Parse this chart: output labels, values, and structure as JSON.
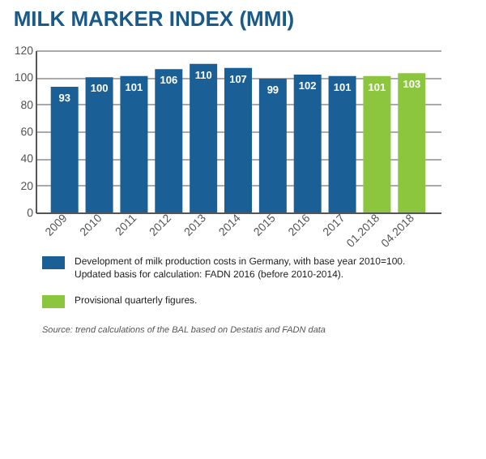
{
  "chart_data": {
    "type": "bar",
    "title": "MILK MARKER INDEX (MMI)",
    "categories": [
      "2009",
      "2010",
      "2011",
      "2012",
      "2013",
      "2014",
      "2015",
      "2016",
      "2017",
      "01.2018",
      "04.2018"
    ],
    "series": [
      {
        "name": "Development of milk production costs in Germany, with base year 2010=100. Updated basis for calculation: FADN 2016 (before 2010-2014).",
        "color": "#1a5f96",
        "values": [
          93,
          100,
          101,
          106,
          110,
          107,
          99,
          102,
          101,
          null,
          null
        ]
      },
      {
        "name": "Provisional quarterly figures.",
        "color": "#8cc63f",
        "values": [
          null,
          null,
          null,
          null,
          null,
          null,
          null,
          null,
          null,
          101,
          103
        ]
      }
    ],
    "ylim": [
      0,
      120
    ],
    "yticks": [
      0,
      20,
      40,
      60,
      80,
      100,
      120
    ],
    "grid": "y",
    "data_labels": true,
    "legend": "bottom",
    "annotations": [
      "Source: trend calculations of the BAL based on Destatis and FADN data"
    ]
  }
}
